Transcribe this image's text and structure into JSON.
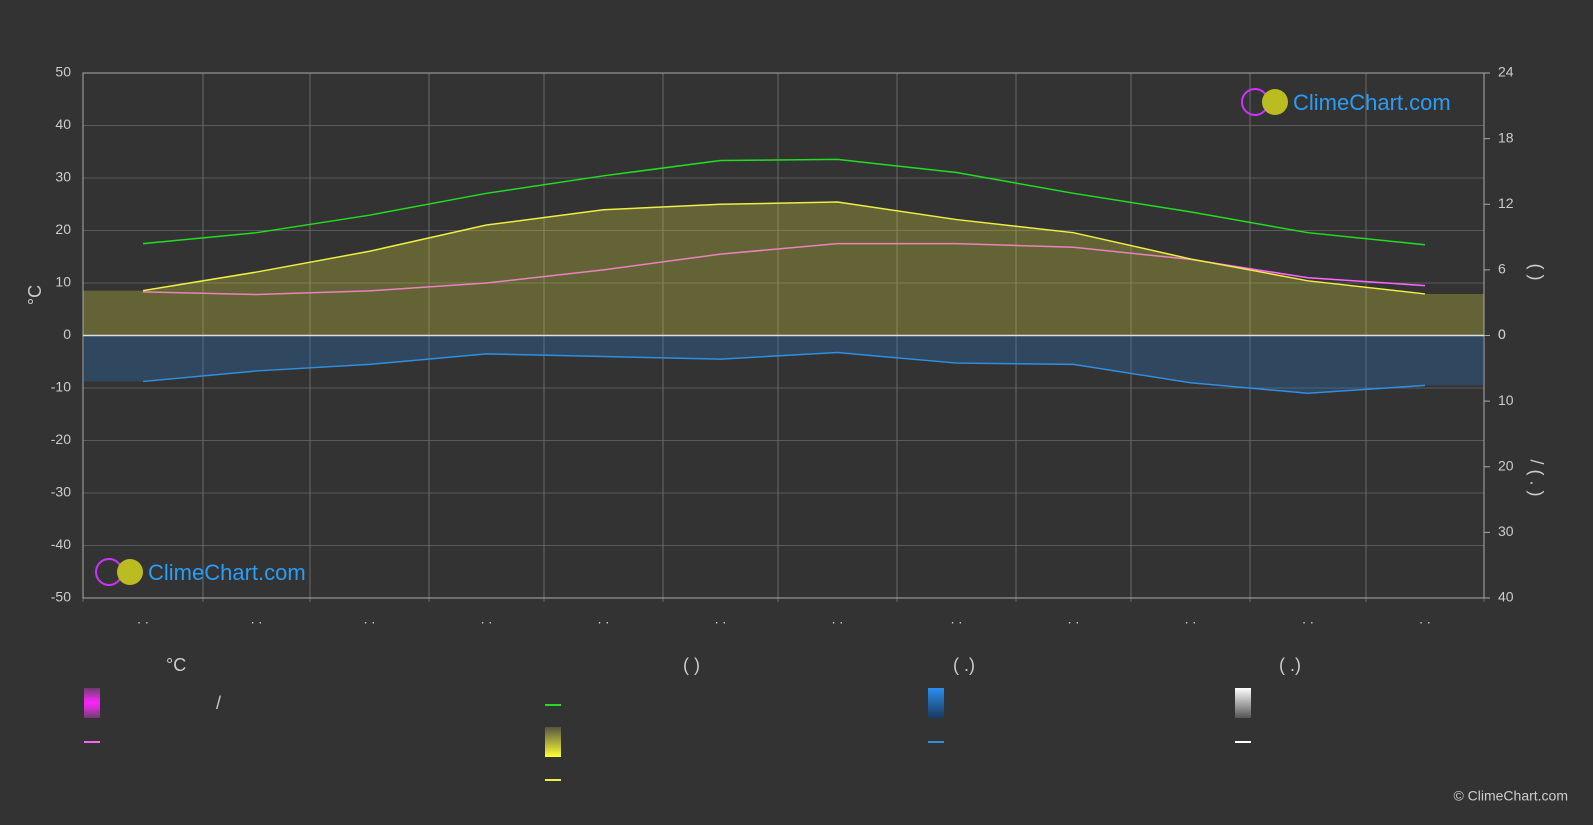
{
  "chart_data": {
    "type": "line",
    "y_label": "°C",
    "y2_label": "(            )",
    "y3_label": "/          (  .  )",
    "categories": [
      ". .",
      ". .",
      ". .",
      ". .",
      ". .",
      ". .",
      ". .",
      ". .",
      ". .",
      ". .",
      ". .",
      ". ."
    ],
    "ylim": [
      -50,
      50
    ],
    "yticks": [
      -50,
      -40,
      -30,
      -20,
      -10,
      0,
      10,
      20,
      30,
      40,
      50
    ],
    "y2lim": [
      -24,
      24
    ],
    "y2ticks": [
      0,
      6,
      12,
      18,
      24
    ],
    "y3lim": [
      40,
      -40
    ],
    "y3ticks": [
      0,
      10,
      20,
      30,
      40
    ],
    "grid": true,
    "series": [
      {
        "color": "#ff66ff",
        "values": [
          8.3,
          7.8,
          8.5,
          10,
          12.5,
          15.5,
          17.5,
          17.5,
          16.8,
          14.5,
          11,
          9.5
        ]
      },
      {
        "color": "#22dd22",
        "axis": "y2",
        "values": [
          8.4,
          9.4,
          11.0,
          13.0,
          14.6,
          16.0,
          16.1,
          14.9,
          13.0,
          11.3,
          9.4,
          8.3
        ]
      },
      {
        "color": "#eeee44",
        "axis": "y2",
        "values": [
          4.1,
          5.8,
          7.7,
          10.1,
          11.5,
          12.0,
          12.2,
          10.6,
          9.4,
          7.0,
          5.0,
          3.8
        ]
      },
      {
        "color": "#2f8fe0",
        "axis": "y3",
        "values": [
          7.0,
          5.4,
          4.4,
          2.8,
          3.2,
          3.6,
          2.6,
          4.2,
          4.4,
          7.2,
          8.8,
          7.6
        ]
      }
    ],
    "legend": {
      "headers": [
        "°C",
        "(            )",
        "(   .)",
        "(   .)"
      ],
      "slash": "/"
    },
    "logo_text": "ClimeChart.com",
    "copyright": "© ClimeChart.com"
  }
}
